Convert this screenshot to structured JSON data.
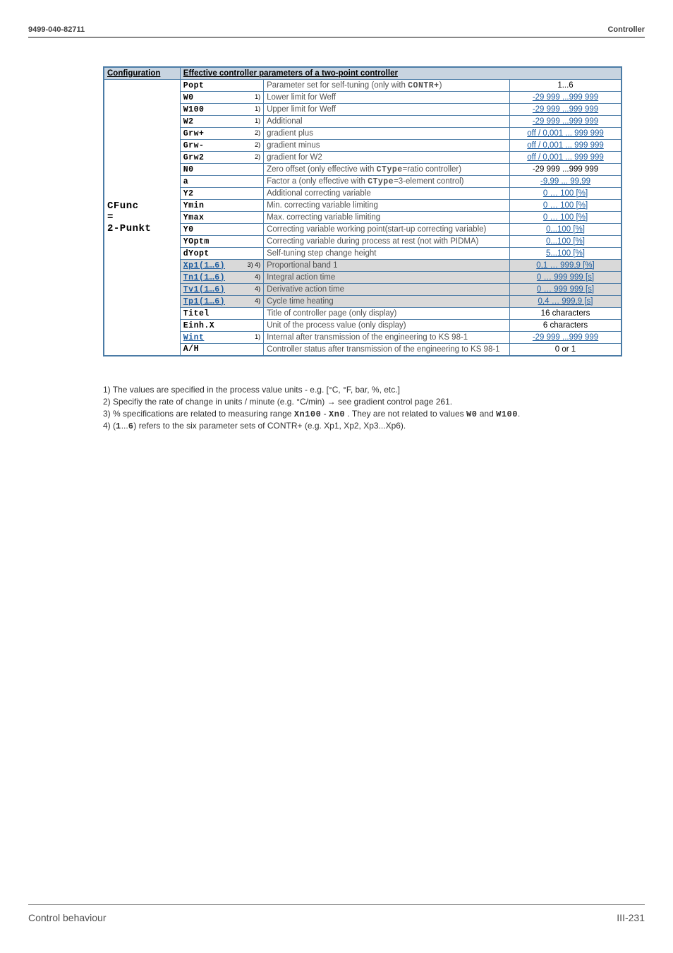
{
  "header": {
    "left": "9499-040-82711",
    "right": "Controller"
  },
  "table": {
    "headers": {
      "config": "Configuration",
      "params": "Effective controller parameters of a two-point controller"
    },
    "config_label_lines": [
      "CFunc",
      "=",
      "2-Punkt"
    ],
    "rows": [
      {
        "param": "Popt",
        "note": "",
        "desc_pre": "Parameter set for self-tuning (only with ",
        "desc_lcd": "CONTR+",
        "desc_post": ")",
        "range": "1...6",
        "range_link": false
      },
      {
        "param": "W0",
        "note": "1)",
        "desc": "Lower  limit for Weff",
        "range": "-29 999 ...999 999",
        "range_link": true
      },
      {
        "param": "W100",
        "note": "1)",
        "desc": "Upper  limit for Weff",
        "range": "-29 999 ...999 999",
        "range_link": true
      },
      {
        "param": "W2",
        "note": "1)",
        "desc": "Additional",
        "range": "-29 999 ...999 999",
        "range_link": true
      },
      {
        "param": "Grw+",
        "note": "2)",
        "desc": "gradient plus",
        "range": "off / 0,001 ... 999 999",
        "range_link": true
      },
      {
        "param": "Grw-",
        "note": "2)",
        "desc": "gradient minus",
        "range": "off / 0,001 ... 999 999",
        "range_link": true
      },
      {
        "param": "Grw2",
        "note": "2)",
        "desc": "gradient for W2",
        "range": "off / 0,001 ... 999 999",
        "range_link": true
      },
      {
        "param": "N0",
        "note": "",
        "desc_pre": "Zero offset (only effective with ",
        "desc_lcd": "CType",
        "desc_post": "=ratio controller)",
        "range": "-29 999 ...999 999",
        "range_link": false
      },
      {
        "param": "a",
        "note": "",
        "desc_pre": "Factor a (only effective with ",
        "desc_lcd": "CType",
        "desc_post": "=3-element control)",
        "range": "-9,99 ... 99,99",
        "range_link": true
      },
      {
        "param": "Y2",
        "note": "",
        "desc": "Additional correcting variable",
        "range": "0 … 100 [%]",
        "range_link": true
      },
      {
        "param": "Ymin",
        "note": "",
        "desc": "Min. correcting variable limiting",
        "range": "0 … 100 [%]",
        "range_link": true
      },
      {
        "param": "Ymax",
        "note": "",
        "desc": "Max. correcting variable limiting",
        "range": "0 … 100 [%]",
        "range_link": true
      },
      {
        "param": "Y0",
        "note": "",
        "desc": "Correcting variable working point(start-up correcting variable)",
        "range": "0...100 [%]",
        "range_link": true
      },
      {
        "param": "YOptm",
        "note": "",
        "desc": "Correcting variable during process at rest  (not with PIDMA)",
        "range": "0...100 [%]",
        "range_link": true
      },
      {
        "param": "dYopt",
        "note": "",
        "desc": "Self-tuning step change height",
        "range": "5...100 [%]",
        "range_link": true
      },
      {
        "param": "Xp1(1…6)",
        "param_link": true,
        "note": "3) 4)",
        "desc": "Proportional band 1",
        "range": "0,1 … 999,9 [%]",
        "range_link": true,
        "shaded": true
      },
      {
        "param": "Tn1(1…6)",
        "param_link": true,
        "note": "4)",
        "desc": "Integral action time",
        "range": "0 … 999 999 [s]",
        "range_link": true,
        "shaded": true
      },
      {
        "param": "Tv1(1…6)",
        "param_link": true,
        "note": "4)",
        "desc": "Derivative action time",
        "range": "0 … 999 999 [s]",
        "range_link": true,
        "shaded": true
      },
      {
        "param": "Tp1(1…6)",
        "param_link": true,
        "note": "4)",
        "desc": "Cycle time heating",
        "range": "0,4 … 999,9 [s]",
        "range_link": true,
        "shaded": true
      },
      {
        "param": "Titel",
        "note": "",
        "desc": "Title of controller page (only display)",
        "range": "16 characters",
        "range_link": false
      },
      {
        "param": "Einh.X",
        "note": "",
        "desc": "Unit of the process value (only display)",
        "range": "6 characters",
        "range_link": false
      },
      {
        "param": "Wint",
        "param_link": true,
        "note": "1)",
        "desc": "Internal  after transmission of the engineering to KS 98-1",
        "range": "-29 999 ...999 999",
        "range_link": true
      },
      {
        "param": "A/H",
        "note": "",
        "desc": "Controller status after transmission of the engineering to KS 98-1",
        "range": "0 or 1",
        "range_link": false
      }
    ]
  },
  "notes": {
    "n1": "1) The values are specified in the process value units - e.g. [°C, °F, bar, %, etc.]",
    "n2_pre": "2) Specifiy the rate of change in units / minute (e.g. °C/min)    ",
    "n2_post": " see gradient control page 261.",
    "n3_pre": "3) % specifications are related to measuring range  ",
    "n3_lcd1": "Xn100",
    "n3_mid": " - ",
    "n3_lcd2": "Xn0",
    "n3_post1": " . They are not related to values ",
    "n3_lcd3": "W0",
    "n3_post2": " and ",
    "n3_lcd4": "W100",
    "n3_post3": ".",
    "n4_pre": "4) (",
    "n4_lcd": "1",
    "n4_mid": "...",
    "n4_lcd2": "6",
    "n4_post": ") refers to the six parameter sets of CONTR+ (e.g. Xp1, Xp2, Xp3...Xp6)."
  },
  "footer": {
    "left": "Control behaviour",
    "right": "III-231"
  }
}
